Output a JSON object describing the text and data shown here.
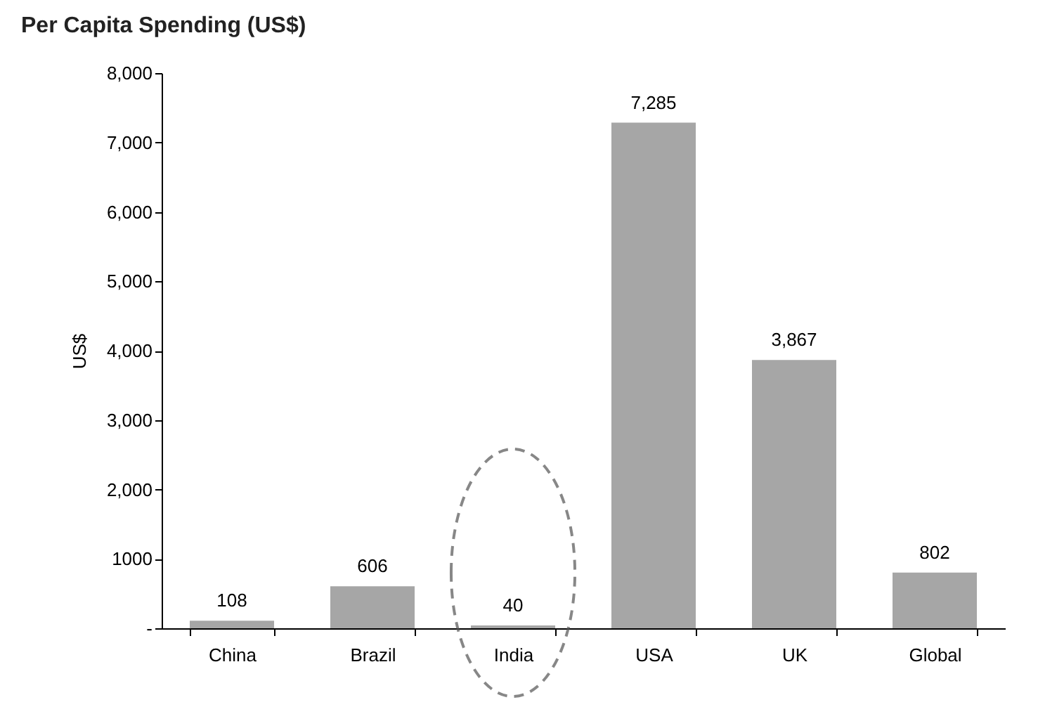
{
  "chart_data": {
    "type": "bar",
    "title": "Per Capita Spending (US$)",
    "ylabel": "US$",
    "categories": [
      "China",
      "Brazil",
      "India",
      "USA",
      "UK",
      "Global"
    ],
    "values": [
      108,
      606,
      40,
      7285,
      3867,
      802
    ],
    "value_labels": [
      "108",
      "606",
      "40",
      "7,285",
      "3,867",
      "802"
    ],
    "color": "#a6a6a6",
    "ylim": [
      0,
      8000
    ],
    "yticks": [
      {
        "value": 0,
        "label": "-"
      },
      {
        "value": 1000,
        "label": "1000"
      },
      {
        "value": 2000,
        "label": "2,000"
      },
      {
        "value": 3000,
        "label": "3,000"
      },
      {
        "value": 4000,
        "label": "4,000"
      },
      {
        "value": 5000,
        "label": "5,000"
      },
      {
        "value": 6000,
        "label": "6,000"
      },
      {
        "value": 7000,
        "label": "7,000"
      },
      {
        "value": 8000,
        "label": "8,000"
      }
    ],
    "grid": false
  }
}
